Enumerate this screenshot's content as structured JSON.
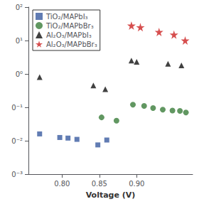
{
  "chart_data": {
    "type": "scatter",
    "xlabel": "Voltage (V)",
    "log": "y",
    "grid": false,
    "legend": "upper left",
    "xlim": [
      0.755,
      0.975
    ],
    "xticks": [
      {
        "value": 0.8,
        "label": "0.80"
      },
      {
        "value": 0.85,
        "label": "0.85"
      },
      {
        "value": 0.9,
        "label": "0.90"
      }
    ],
    "ylim": [
      0.001,
      100
    ],
    "yticks": [
      {
        "value": 0.001,
        "label": "0⁻³"
      },
      {
        "value": 0.01,
        "label": "0⁻²"
      },
      {
        "value": 0.1,
        "label": "0⁻¹"
      },
      {
        "value": 1,
        "label": "0⁰"
      },
      {
        "value": 10,
        "label": "0¹"
      },
      {
        "value": 100,
        "label": "0²"
      }
    ],
    "series": [
      {
        "name": "TiO₂/MAPbI₃",
        "color": "#3A5BA0",
        "marker": "square",
        "x": [
          0.77,
          0.797,
          0.808,
          0.82,
          0.848,
          0.86
        ],
        "values": [
          0.016,
          0.0125,
          0.012,
          0.011,
          0.0075,
          0.0105
        ]
      },
      {
        "name": "TiO₂/MAPbBr₃",
        "color": "#3A7D3A",
        "marker": "circle",
        "x": [
          0.853,
          0.873,
          0.895,
          0.91,
          0.922,
          0.935,
          0.948,
          0.958,
          0.966
        ],
        "values": [
          0.05,
          0.04,
          0.12,
          0.11,
          0.095,
          0.085,
          0.08,
          0.078,
          0.07
        ]
      },
      {
        "name": "Al₂O₃/MAPbI₃",
        "color": "#111111",
        "marker": "triangle",
        "x": [
          0.77,
          0.842,
          0.858,
          0.893,
          0.9,
          0.942,
          0.96
        ],
        "values": [
          0.8,
          0.45,
          0.35,
          2.5,
          2.3,
          2.0,
          1.8
        ]
      },
      {
        "name": "Al₂O₃/MAPbBr₃",
        "color": "#CC2222",
        "marker": "star",
        "x": [
          0.893,
          0.905,
          0.93,
          0.95,
          0.965
        ],
        "values": [
          28.0,
          25.0,
          18.0,
          15.0,
          10.0
        ]
      }
    ]
  }
}
